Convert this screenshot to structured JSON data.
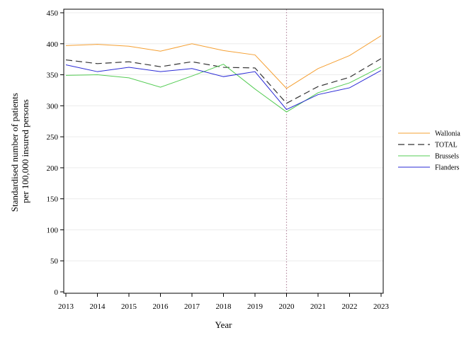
{
  "chart_data": {
    "type": "line",
    "title": "",
    "xlabel": "Year",
    "ylabel_lines": [
      "Standardised number of patients",
      "per 100,000 insured persons"
    ],
    "x": [
      2013,
      2014,
      2015,
      2016,
      2017,
      2018,
      2019,
      2020,
      2021,
      2022,
      2023
    ],
    "ylim": [
      0,
      450
    ],
    "yticks": [
      0,
      50,
      100,
      150,
      200,
      250,
      300,
      350,
      400,
      450
    ],
    "grid": "horizontal, light",
    "reference_line_x": 2020,
    "legend_position": "right",
    "series": [
      {
        "name": "Wallonia",
        "color": "#f5a033",
        "dash": "solid",
        "values": [
          397,
          399,
          396,
          388,
          400,
          389,
          382,
          328,
          360,
          381,
          413
        ]
      },
      {
        "name": "TOTAL",
        "color": "#333333",
        "dash": "dashed",
        "values": [
          374,
          368,
          371,
          363,
          371,
          362,
          361,
          304,
          331,
          346,
          376
        ]
      },
      {
        "name": "Brussels",
        "color": "#55cc55",
        "dash": "solid",
        "values": [
          349,
          350,
          345,
          330,
          348,
          367,
          327,
          290,
          321,
          337,
          363
        ]
      },
      {
        "name": "Flanders",
        "color": "#2b2bd6",
        "dash": "solid",
        "values": [
          366,
          355,
          362,
          355,
          360,
          347,
          355,
          294,
          318,
          329,
          357
        ]
      }
    ]
  }
}
